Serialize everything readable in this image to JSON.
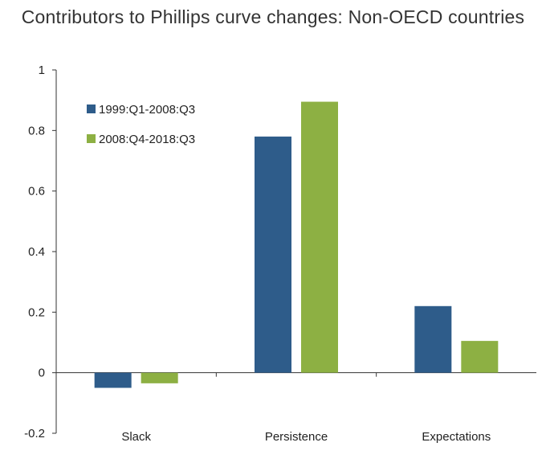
{
  "chart_data": {
    "type": "bar",
    "title": "Contributors to Phillips curve changes: Non-OECD countries",
    "xlabel": "",
    "ylabel": "",
    "categories": [
      "Slack",
      "Persistence",
      "Expectations"
    ],
    "series": [
      {
        "name": "1999:Q1-2008:Q3",
        "values": [
          -0.05,
          0.78,
          0.22
        ],
        "color": "#2E5C8A"
      },
      {
        "name": "2008:Q4-2018:Q3",
        "values": [
          -0.035,
          0.895,
          0.105
        ],
        "color": "#8DB043"
      }
    ],
    "ylim": [
      -0.2,
      1
    ],
    "yticks": [
      -0.2,
      0,
      0.2,
      0.4,
      0.6,
      0.8,
      1
    ],
    "ytick_labels": [
      "-0.2",
      "0",
      "0.2",
      "0.4",
      "0.6",
      "0.8",
      "1"
    ],
    "grid": false,
    "legend_position": "top-left"
  }
}
